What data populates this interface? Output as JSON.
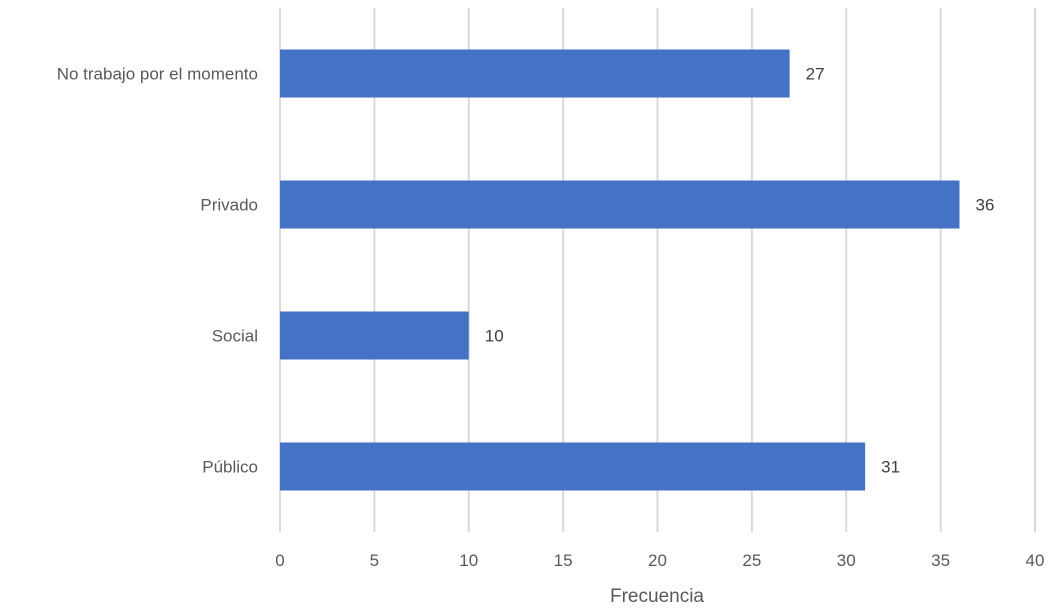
{
  "chart_data": {
    "type": "bar",
    "orientation": "horizontal",
    "categories": [
      "No trabajo por el momento",
      "Privado",
      "Social",
      "Público"
    ],
    "values": [
      27,
      36,
      10,
      31
    ],
    "xlabel": "Frecuencia",
    "ylabel": "",
    "xlim": [
      0,
      40
    ],
    "xticks": [
      0,
      5,
      10,
      15,
      20,
      25,
      30,
      35,
      40
    ],
    "grid": "vertical",
    "legend": "none",
    "data_labels": true,
    "bar_color": "#4472c4"
  }
}
